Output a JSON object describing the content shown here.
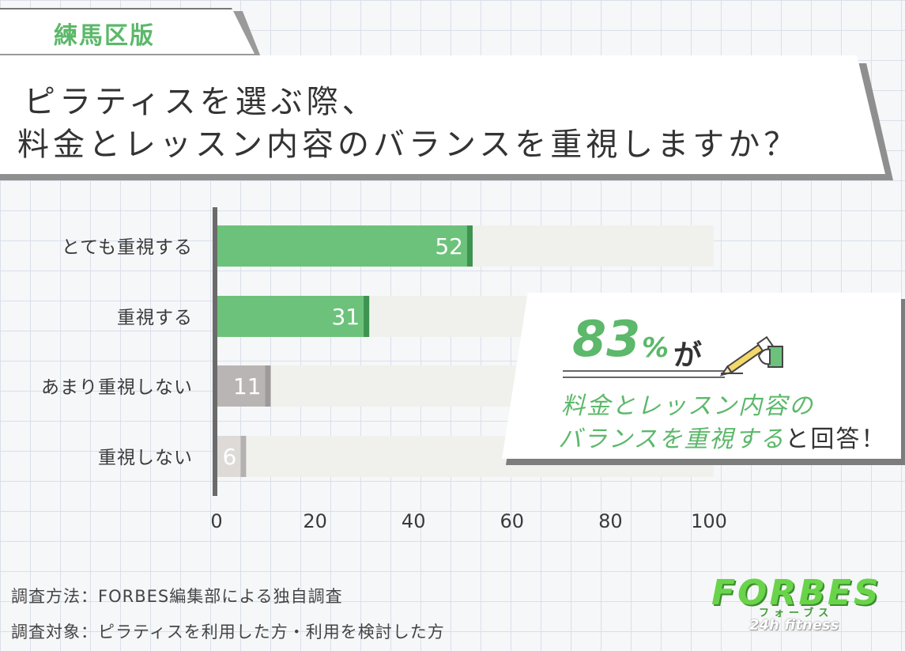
{
  "region_tag": "練馬区版",
  "title": {
    "line1": "ピラティスを選ぶ際、",
    "line2": "料金とレッスン内容のバランスを重視しますか？"
  },
  "chart_data": {
    "type": "bar",
    "orientation": "horizontal",
    "categories": [
      "とても重視する",
      "重視する",
      "あまり重視しない",
      "重視しない"
    ],
    "values": [
      52,
      31,
      11,
      6
    ],
    "value_labels": [
      "52",
      "31",
      "11",
      "6"
    ],
    "x_ticks": [
      "0",
      "20",
      "40",
      "60",
      "80",
      "100"
    ],
    "xlim": [
      0,
      100
    ],
    "colors": [
      "#6cc27b",
      "#6cc27b",
      "#bab5b5",
      "#dedad8"
    ],
    "edge_colors": [
      "#3d9450",
      "#3d9450",
      "#9e9a9a",
      "#b5b1b0"
    ],
    "track_color": "#f0f1ec"
  },
  "callout": {
    "big_number": "83",
    "big_suffix": "%",
    "particle": "が",
    "line1": "料金とレッスン内容の",
    "line2_highlight": "バランスを重視する",
    "line2_tail": "と回答！"
  },
  "notes": {
    "method": "調査方法：FORBES編集部による独自調査",
    "target": "調査対象：ピラティスを利用した方・利用を検討した方"
  },
  "logo": {
    "main": "FORBES",
    "kana": "フォーブス",
    "sub": "24h fitness"
  }
}
